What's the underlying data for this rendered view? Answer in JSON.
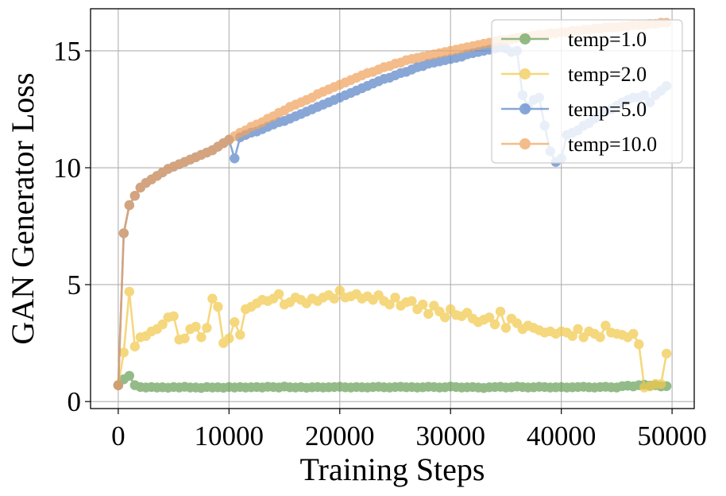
{
  "chart_data": {
    "type": "line",
    "title": "",
    "xlabel": "Training Steps",
    "ylabel": "GAN Generator Loss",
    "xlim": [
      -2500,
      52000
    ],
    "ylim": [
      -0.3,
      16.8
    ],
    "xticks": [
      0,
      10000,
      20000,
      30000,
      40000,
      50000
    ],
    "xtick_labels": [
      "0",
      "10000",
      "20000",
      "30000",
      "40000",
      "50000"
    ],
    "yticks": [
      0,
      5,
      10,
      15
    ],
    "ytick_labels": [
      "0",
      "5",
      "10",
      "15"
    ],
    "grid": true,
    "legend_position": "top-right",
    "series": [
      {
        "name": "temp=1.0",
        "color": "#6aa25a",
        "x": [
          0,
          500,
          1000,
          1500,
          2000,
          2500,
          3000,
          3500,
          4000,
          4500,
          5000,
          5500,
          6000,
          6500,
          7000,
          7500,
          8000,
          8500,
          9000,
          9500,
          10000,
          10500,
          11000,
          11500,
          12000,
          12500,
          13000,
          13500,
          14000,
          14500,
          15000,
          15500,
          16000,
          16500,
          17000,
          17500,
          18000,
          18500,
          19000,
          19500,
          20000,
          20500,
          21000,
          21500,
          22000,
          22500,
          23000,
          23500,
          24000,
          24500,
          25000,
          25500,
          26000,
          26500,
          27000,
          27500,
          28000,
          28500,
          29000,
          29500,
          30000,
          30500,
          31000,
          31500,
          32000,
          32500,
          33000,
          33500,
          34000,
          34500,
          35000,
          35500,
          36000,
          36500,
          37000,
          37500,
          38000,
          38500,
          39000,
          39500,
          40000,
          40500,
          41000,
          41500,
          42000,
          42500,
          43000,
          43500,
          44000,
          44500,
          45000,
          45500,
          46000,
          46500,
          47000,
          47500,
          48000,
          48500,
          49000,
          49500
        ],
        "y": [
          0.7,
          0.95,
          1.1,
          0.7,
          0.62,
          0.6,
          0.62,
          0.6,
          0.61,
          0.59,
          0.62,
          0.6,
          0.63,
          0.6,
          0.6,
          0.58,
          0.62,
          0.6,
          0.61,
          0.59,
          0.62,
          0.6,
          0.62,
          0.6,
          0.61,
          0.62,
          0.6,
          0.63,
          0.62,
          0.6,
          0.64,
          0.61,
          0.6,
          0.62,
          0.59,
          0.61,
          0.62,
          0.6,
          0.61,
          0.62,
          0.63,
          0.61,
          0.6,
          0.62,
          0.61,
          0.6,
          0.62,
          0.63,
          0.61,
          0.6,
          0.62,
          0.63,
          0.61,
          0.62,
          0.6,
          0.61,
          0.63,
          0.62,
          0.6,
          0.61,
          0.64,
          0.62,
          0.6,
          0.61,
          0.62,
          0.6,
          0.58,
          0.61,
          0.62,
          0.63,
          0.6,
          0.61,
          0.64,
          0.62,
          0.6,
          0.61,
          0.63,
          0.62,
          0.6,
          0.61,
          0.62,
          0.6,
          0.61,
          0.62,
          0.63,
          0.61,
          0.6,
          0.62,
          0.63,
          0.61,
          0.6,
          0.66,
          0.68,
          0.65,
          0.7,
          0.72,
          0.68,
          0.7,
          0.65,
          0.66
        ]
      },
      {
        "name": "temp=2.0",
        "color": "#f2c94c",
        "x": [
          0,
          500,
          1000,
          1500,
          2000,
          2500,
          3000,
          3500,
          4000,
          4500,
          5000,
          5500,
          6000,
          6500,
          7000,
          7500,
          8000,
          8500,
          9000,
          9500,
          10000,
          10500,
          11000,
          11500,
          12000,
          12500,
          13000,
          13500,
          14000,
          14500,
          15000,
          15500,
          16000,
          16500,
          17000,
          17500,
          18000,
          18500,
          19000,
          19500,
          20000,
          20500,
          21000,
          21500,
          22000,
          22500,
          23000,
          23500,
          24000,
          24500,
          25000,
          25500,
          26000,
          26500,
          27000,
          27500,
          28000,
          28500,
          29000,
          29500,
          30000,
          30500,
          31000,
          31500,
          32000,
          32500,
          33000,
          33500,
          34000,
          34500,
          35000,
          35500,
          36000,
          36500,
          37000,
          37500,
          38000,
          38500,
          39000,
          39500,
          40000,
          40500,
          41000,
          41500,
          42000,
          42500,
          43000,
          43500,
          44000,
          44500,
          45000,
          45500,
          46000,
          46500,
          47000,
          47500,
          48000,
          48500,
          49000,
          49500
        ],
        "y": [
          0.7,
          2.1,
          4.7,
          2.35,
          2.75,
          2.8,
          3.0,
          3.1,
          3.3,
          3.6,
          3.65,
          2.65,
          2.7,
          3.1,
          3.2,
          2.75,
          3.15,
          4.4,
          4.05,
          2.5,
          2.7,
          3.4,
          2.85,
          3.95,
          4.05,
          4.2,
          4.35,
          4.3,
          4.4,
          4.6,
          4.15,
          4.25,
          4.45,
          4.35,
          4.2,
          4.4,
          4.3,
          4.45,
          4.55,
          4.4,
          4.75,
          4.45,
          4.5,
          4.6,
          4.4,
          4.5,
          4.35,
          4.55,
          4.3,
          4.15,
          4.45,
          4.1,
          4.25,
          4.3,
          3.95,
          4.15,
          3.75,
          4.1,
          3.85,
          3.6,
          3.95,
          3.7,
          3.65,
          3.8,
          3.55,
          3.4,
          3.5,
          3.6,
          3.3,
          3.85,
          3.15,
          3.55,
          3.35,
          3.1,
          3.25,
          3.15,
          3.05,
          2.95,
          3.0,
          2.9,
          3.0,
          2.95,
          2.8,
          3.1,
          2.75,
          3.0,
          2.9,
          2.75,
          3.25,
          2.95,
          2.9,
          2.85,
          2.75,
          2.9,
          2.45,
          0.6,
          0.65,
          0.75,
          0.75,
          2.05
        ]
      },
      {
        "name": "temp=5.0",
        "color": "#5b86c9",
        "x": [
          0,
          500,
          1000,
          1500,
          2000,
          2500,
          3000,
          3500,
          4000,
          4500,
          5000,
          5500,
          6000,
          6500,
          7000,
          7500,
          8000,
          8500,
          9000,
          9500,
          10000,
          10500,
          11000,
          11500,
          12000,
          12500,
          13000,
          13500,
          14000,
          14500,
          15000,
          15500,
          16000,
          16500,
          17000,
          17500,
          18000,
          18500,
          19000,
          19500,
          20000,
          20500,
          21000,
          21500,
          22000,
          22500,
          23000,
          23500,
          24000,
          24500,
          25000,
          25500,
          26000,
          26500,
          27000,
          27500,
          28000,
          28500,
          29000,
          29500,
          30000,
          30500,
          31000,
          31500,
          32000,
          32500,
          33000,
          33500,
          34000,
          34500,
          35000,
          35500,
          36000,
          36500,
          37000,
          37500,
          38000,
          38500,
          39000,
          39500,
          40000,
          40500,
          41000,
          41500,
          42000,
          42500,
          43000,
          43500,
          44000,
          44500,
          45000,
          45500,
          46000,
          46500,
          47000,
          47500,
          48000,
          48500,
          49000,
          49500
        ],
        "y": [
          0.7,
          7.2,
          8.4,
          8.8,
          9.15,
          9.35,
          9.5,
          9.65,
          9.8,
          9.95,
          10.05,
          10.15,
          10.25,
          10.35,
          10.45,
          10.55,
          10.65,
          10.75,
          10.9,
          11.05,
          11.2,
          10.4,
          11.3,
          11.4,
          11.5,
          11.55,
          11.65,
          11.75,
          11.85,
          11.95,
          12.0,
          12.1,
          12.2,
          12.3,
          12.4,
          12.5,
          12.6,
          12.7,
          12.8,
          12.9,
          13.0,
          13.1,
          13.2,
          13.3,
          13.4,
          13.5,
          13.6,
          13.7,
          13.8,
          13.85,
          13.95,
          14.05,
          14.1,
          14.2,
          14.3,
          14.35,
          14.45,
          14.5,
          14.55,
          14.6,
          14.65,
          14.7,
          14.75,
          14.85,
          14.9,
          14.95,
          15.0,
          15.05,
          15.1,
          15.15,
          15.1,
          14.95,
          15.0,
          13.1,
          12.6,
          12.9,
          13.0,
          11.8,
          10.7,
          10.25,
          10.4,
          11.4,
          11.5,
          11.6,
          11.8,
          11.9,
          12.1,
          12.3,
          12.4,
          12.5,
          12.65,
          12.8,
          12.9,
          13.0,
          13.0,
          13.1,
          12.8,
          13.1,
          13.3,
          13.5
        ]
      },
      {
        "name": "temp=10.0",
        "color": "#f0a35e",
        "x": [
          0,
          500,
          1000,
          1500,
          2000,
          2500,
          3000,
          3500,
          4000,
          4500,
          5000,
          5500,
          6000,
          6500,
          7000,
          7500,
          8000,
          8500,
          9000,
          9500,
          10000,
          10500,
          11000,
          11500,
          12000,
          12500,
          13000,
          13500,
          14000,
          14500,
          15000,
          15500,
          16000,
          16500,
          17000,
          17500,
          18000,
          18500,
          19000,
          19500,
          20000,
          20500,
          21000,
          21500,
          22000,
          22500,
          23000,
          23500,
          24000,
          24500,
          25000,
          25500,
          26000,
          26500,
          27000,
          27500,
          28000,
          28500,
          29000,
          29500,
          30000,
          30500,
          31000,
          31500,
          32000,
          32500,
          33000,
          33500,
          34000,
          34500,
          35000,
          35500,
          36000,
          36500,
          37000,
          37500,
          38000,
          38500,
          39000,
          39500,
          40000,
          40500,
          41000,
          41500,
          42000,
          42500,
          43000,
          43500,
          44000,
          44500,
          45000,
          45500,
          46000,
          46500,
          47000,
          47500,
          48000,
          48500,
          49000,
          49500
        ],
        "y": [
          0.7,
          7.2,
          8.4,
          8.8,
          9.15,
          9.35,
          9.5,
          9.65,
          9.8,
          9.95,
          10.05,
          10.15,
          10.25,
          10.35,
          10.45,
          10.55,
          10.65,
          10.75,
          10.9,
          11.05,
          11.2,
          11.35,
          11.5,
          11.6,
          11.75,
          11.85,
          11.95,
          12.1,
          12.2,
          12.35,
          12.45,
          12.6,
          12.7,
          12.8,
          12.9,
          13.0,
          13.15,
          13.25,
          13.35,
          13.45,
          13.55,
          13.65,
          13.75,
          13.85,
          13.95,
          14.05,
          14.1,
          14.2,
          14.3,
          14.35,
          14.45,
          14.5,
          14.6,
          14.65,
          14.7,
          14.75,
          14.8,
          14.85,
          14.9,
          14.95,
          15.0,
          15.05,
          15.1,
          15.15,
          15.2,
          15.25,
          15.3,
          15.35,
          15.4,
          15.45,
          15.45,
          15.5,
          15.55,
          15.6,
          15.6,
          15.65,
          15.7,
          15.7,
          15.75,
          15.75,
          15.8,
          15.8,
          15.85,
          15.85,
          15.9,
          15.9,
          15.95,
          15.95,
          16.0,
          16.0,
          16.0,
          16.05,
          16.05,
          16.1,
          16.1,
          16.1,
          16.15,
          16.15,
          16.2,
          16.2
        ]
      }
    ]
  }
}
